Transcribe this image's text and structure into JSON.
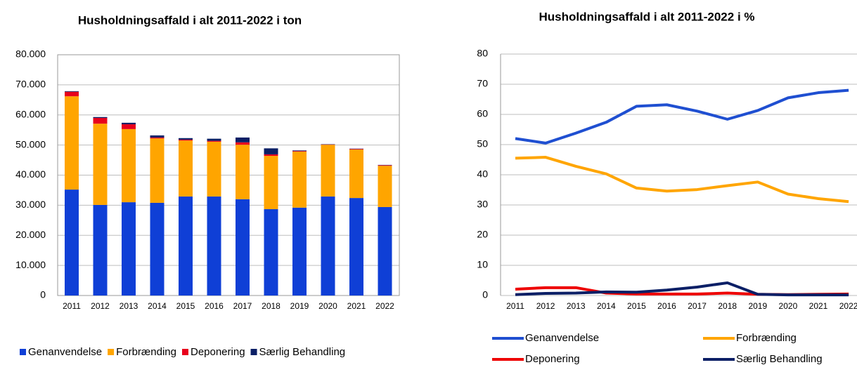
{
  "chart_data": [
    {
      "type": "stacked_bar",
      "title": "Husholdningsaffald i alt 2011-2022 i ton",
      "categories": [
        "2011",
        "2012",
        "2013",
        "2014",
        "2015",
        "2016",
        "2017",
        "2018",
        "2019",
        "2020",
        "2021",
        "2022"
      ],
      "series": [
        {
          "name": "Genanvendelse",
          "color": "#0f3fd6",
          "values": [
            35200,
            30100,
            31000,
            30800,
            32900,
            32900,
            32000,
            28700,
            29200,
            32900,
            32400,
            29400
          ]
        },
        {
          "name": "Forbrænding",
          "color": "#ffa500",
          "values": [
            31000,
            27000,
            24300,
            21400,
            18600,
            18200,
            18100,
            17700,
            18600,
            17200,
            16100,
            13700
          ]
        },
        {
          "name": "Deponering",
          "color": "#e8001c",
          "values": [
            1500,
            1900,
            1600,
            300,
            300,
            300,
            800,
            500,
            200,
            100,
            200,
            200
          ]
        },
        {
          "name": "Særlig Behandling",
          "color": "#0b1f66",
          "values": [
            200,
            300,
            500,
            700,
            500,
            700,
            1600,
            2000,
            200,
            100,
            100,
            100
          ]
        }
      ],
      "ylim": [
        0,
        80000
      ],
      "yticks": [
        0,
        {
          "value": 10000,
          "label": "10.000"
        },
        {
          "value": 20000,
          "label": "20.000"
        },
        {
          "value": 30000,
          "label": "30.000"
        },
        {
          "value": 40000,
          "label": "40.000"
        },
        {
          "value": 50000,
          "label": "50.000"
        },
        {
          "value": 60000,
          "label": "60.000"
        },
        {
          "value": 70000,
          "label": "70.000"
        },
        {
          "value": 80000,
          "label": "80.000"
        }
      ],
      "grid": true,
      "legend": "bottom"
    },
    {
      "type": "line",
      "title": "Husholdningsaffald i alt 2011-2022 i %",
      "categories": [
        "2011",
        "2012",
        "2013",
        "2014",
        "2015",
        "2016",
        "2017",
        "2018",
        "2019",
        "2020",
        "2021",
        "2022"
      ],
      "series": [
        {
          "name": "Genanvendelse",
          "color": "#1f4fd1",
          "values": [
            52,
            50.5,
            53.8,
            57.4,
            62.7,
            63.2,
            61.1,
            58.4,
            61.3,
            65.5,
            67.2,
            68
          ]
        },
        {
          "name": "Forbrænding",
          "color": "#ffa500",
          "values": [
            45.5,
            45.8,
            42.8,
            40.3,
            35.6,
            34.6,
            35.1,
            36.4,
            37.6,
            33.6,
            32.1,
            31.1
          ]
        },
        {
          "name": "Deponering",
          "color": "#ee0000",
          "values": [
            2.1,
            2.6,
            2.6,
            0.8,
            0.5,
            0.5,
            0.5,
            0.8,
            0.4,
            0.3,
            0.4,
            0.5
          ]
        },
        {
          "name": "Særlig Behandling",
          "color": "#0b1f66",
          "values": [
            0.3,
            0.7,
            0.8,
            1.2,
            1.1,
            1.8,
            2.8,
            4.2,
            0.4,
            0.2,
            0.2,
            0.2
          ]
        }
      ],
      "ylim": [
        0,
        80
      ],
      "yticks": [
        0,
        10,
        20,
        30,
        40,
        50,
        60,
        70,
        80
      ],
      "grid": true,
      "legend": "bottom"
    }
  ]
}
